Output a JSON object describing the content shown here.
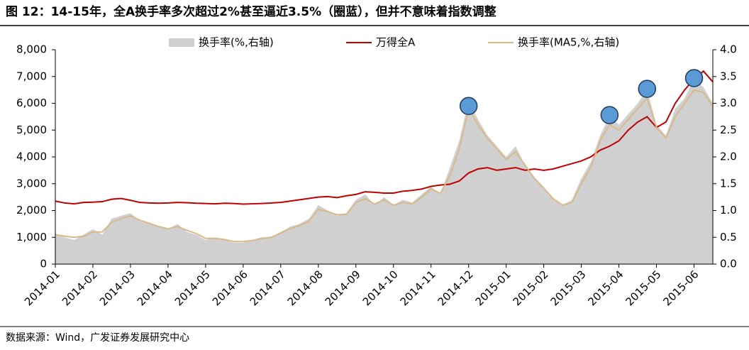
{
  "title": "图 12：14-15年，全A换手率多次超过2%甚至逼近3.5%（圈蓝），但并不意味着指数调整",
  "source": "数据来源：Wind，广发证券发展研究中心",
  "chart_data": {
    "type": "line",
    "categories": [
      "2014-01",
      null,
      null,
      null,
      "2014-02",
      null,
      null,
      null,
      "2014-03",
      null,
      null,
      null,
      "2014-04",
      null,
      null,
      null,
      "2014-05",
      null,
      null,
      null,
      "2014-06",
      null,
      null,
      null,
      "2014-07",
      null,
      null,
      null,
      "2014-08",
      null,
      null,
      null,
      "2014-09",
      null,
      null,
      null,
      "2014-10",
      null,
      null,
      null,
      "2014-11",
      null,
      null,
      null,
      "2014-12",
      null,
      null,
      null,
      "2015-01",
      null,
      null,
      null,
      "2015-02",
      null,
      null,
      null,
      "2015-03",
      null,
      null,
      null,
      "2015-04",
      null,
      null,
      null,
      "2015-05",
      null,
      null,
      null,
      "2015-06",
      null,
      null
    ],
    "series": [
      {
        "name": "换手率(%,右轴)",
        "style": "area",
        "axis": "y2",
        "color": "#d0d0d0",
        "values": [
          0.55,
          0.5,
          0.45,
          0.55,
          0.65,
          0.55,
          0.85,
          0.9,
          0.95,
          0.8,
          0.75,
          0.7,
          0.65,
          0.75,
          0.6,
          0.55,
          0.45,
          0.5,
          0.45,
          0.4,
          0.4,
          0.45,
          0.5,
          0.5,
          0.6,
          0.7,
          0.75,
          0.85,
          1.1,
          1.0,
          0.9,
          0.95,
          1.2,
          1.3,
          1.1,
          1.25,
          1.1,
          1.2,
          1.15,
          1.3,
          1.45,
          1.3,
          1.8,
          2.3,
          3.05,
          2.7,
          2.4,
          2.2,
          2.0,
          2.2,
          1.85,
          1.6,
          1.4,
          1.2,
          1.1,
          1.2,
          1.6,
          1.9,
          2.4,
          2.75,
          2.6,
          2.8,
          3.0,
          3.25,
          2.6,
          2.4,
          2.9,
          3.1,
          3.45,
          3.3,
          3.0
        ]
      },
      {
        "name": "万得全A",
        "style": "line",
        "color": "#c00000",
        "values": [
          2350,
          2280,
          2250,
          2300,
          2310,
          2330,
          2420,
          2450,
          2380,
          2300,
          2280,
          2270,
          2280,
          2300,
          2290,
          2270,
          2260,
          2250,
          2270,
          2260,
          2240,
          2250,
          2260,
          2280,
          2300,
          2350,
          2400,
          2450,
          2500,
          2520,
          2480,
          2550,
          2600,
          2700,
          2680,
          2650,
          2650,
          2720,
          2750,
          2800,
          2900,
          2950,
          2980,
          3100,
          3400,
          3550,
          3600,
          3500,
          3550,
          3600,
          3500,
          3550,
          3500,
          3550,
          3650,
          3750,
          3850,
          4000,
          4250,
          4400,
          4600,
          5000,
          5300,
          5500,
          5100,
          5300,
          6000,
          6500,
          6900,
          7200,
          6800
        ]
      },
      {
        "name": "换手率(MA5,%,右轴)",
        "style": "line",
        "axis": "y2",
        "color": "#d9b98a",
        "values": [
          0.55,
          0.52,
          0.5,
          0.52,
          0.6,
          0.6,
          0.78,
          0.85,
          0.9,
          0.82,
          0.76,
          0.7,
          0.66,
          0.7,
          0.63,
          0.57,
          0.48,
          0.48,
          0.46,
          0.42,
          0.42,
          0.44,
          0.48,
          0.5,
          0.58,
          0.66,
          0.72,
          0.8,
          1.02,
          0.98,
          0.92,
          0.93,
          1.15,
          1.22,
          1.12,
          1.2,
          1.1,
          1.15,
          1.12,
          1.25,
          1.4,
          1.32,
          1.65,
          2.15,
          2.9,
          2.6,
          2.35,
          2.15,
          1.95,
          2.1,
          1.85,
          1.6,
          1.42,
          1.22,
          1.1,
          1.15,
          1.5,
          1.8,
          2.3,
          2.6,
          2.5,
          2.7,
          2.9,
          3.1,
          2.55,
          2.35,
          2.75,
          3.0,
          3.25,
          3.2,
          2.95
        ]
      }
    ],
    "highlights": {
      "color": "#5b9bd5",
      "points": [
        {
          "index": 44,
          "value": 2.95
        },
        {
          "index": 59,
          "value": 2.78
        },
        {
          "index": 63,
          "value": 3.27
        },
        {
          "index": 68,
          "value": 3.47
        }
      ]
    },
    "ylim": [
      0,
      8000
    ],
    "yticks": [
      0,
      {
        "value": 1000,
        "label": "1,000"
      },
      {
        "value": 2000,
        "label": "2,000"
      },
      {
        "value": 3000,
        "label": "3,000"
      },
      {
        "value": 4000,
        "label": "4,000"
      },
      {
        "value": 5000,
        "label": "5,000"
      },
      {
        "value": 6000,
        "label": "6,000"
      },
      {
        "value": 7000,
        "label": "7,000"
      },
      {
        "value": 8000,
        "label": "8,000"
      }
    ],
    "y2lim": [
      0,
      4
    ],
    "y2ticks": [
      {
        "value": 0,
        "label": "0.0"
      },
      0.5,
      {
        "value": 1,
        "label": "1.0"
      },
      1.5,
      {
        "value": 2,
        "label": "2.0"
      },
      2.5,
      {
        "value": 3,
        "label": "3.0"
      },
      3.5,
      {
        "value": 4,
        "label": "4.0"
      }
    ],
    "legend": "top"
  }
}
